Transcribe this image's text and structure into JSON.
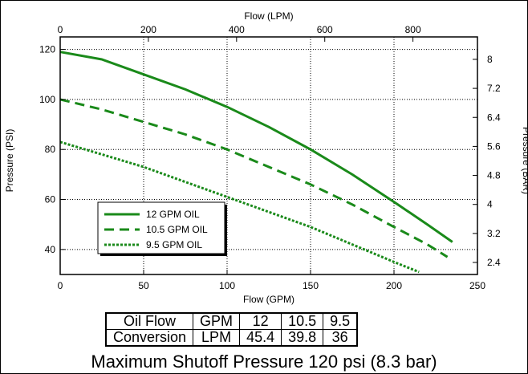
{
  "chart_data": {
    "type": "line",
    "xlabel": "Flow (GPM)",
    "xlabel_top": "Flow (LPM)",
    "ylabel": "Pressure (PSI)",
    "ylabel_right": "Pressure (BAR)",
    "xlim": [
      0,
      250
    ],
    "ylim": [
      30,
      125
    ],
    "x_ticks": [
      0,
      50,
      100,
      150,
      200,
      250
    ],
    "y_ticks": [
      40,
      60,
      80,
      100,
      120
    ],
    "top_ticks": [
      0,
      200,
      400,
      600,
      800
    ],
    "right_ticks": [
      2.4,
      3.2,
      4,
      4.8,
      5.6,
      6.4,
      7.2,
      8
    ],
    "grid": true,
    "legend_position": "lower-left",
    "series": [
      {
        "name": "12 GPM OIL",
        "style": "solid",
        "x": [
          0,
          25,
          50,
          75,
          100,
          125,
          150,
          175,
          200,
          220,
          235
        ],
        "y": [
          119,
          116,
          110,
          104,
          97,
          89,
          80,
          70,
          59,
          50,
          43
        ]
      },
      {
        "name": "10.5 GPM OIL",
        "style": "dashed",
        "x": [
          0,
          25,
          50,
          75,
          100,
          125,
          150,
          175,
          200,
          220,
          232
        ],
        "y": [
          100,
          96,
          91,
          86,
          80,
          73,
          66,
          58,
          49,
          42,
          37
        ]
      },
      {
        "name": "9.5 GPM OIL",
        "style": "dotted",
        "x": [
          0,
          25,
          50,
          75,
          100,
          125,
          150,
          175,
          200,
          215
        ],
        "y": [
          83,
          78,
          73,
          67,
          61,
          55,
          49,
          42,
          35,
          31
        ]
      }
    ],
    "color": "#1a8a1a"
  },
  "table": {
    "row1": [
      "Oil Flow",
      "GPM",
      "12",
      "10.5",
      "9.5"
    ],
    "row2": [
      "Conversion",
      "LPM",
      "45.4",
      "39.8",
      "36"
    ]
  },
  "caption": "Maximum Shutoff Pressure  120 psi (8.3 bar)"
}
